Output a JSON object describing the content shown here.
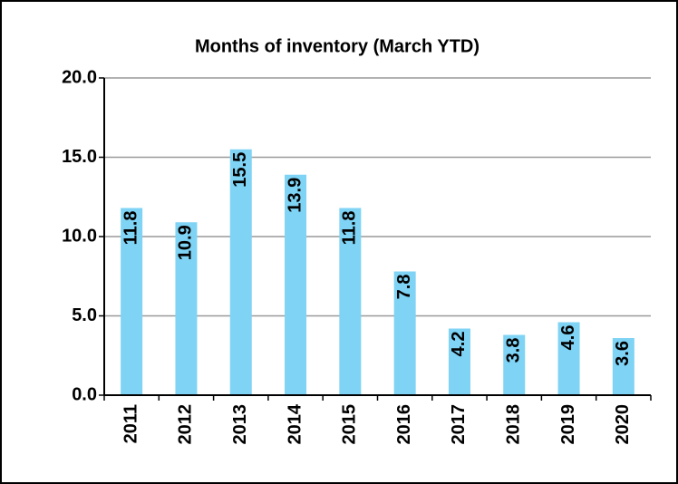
{
  "chart_data": {
    "type": "bar",
    "title": "Months of inventory (March YTD)",
    "categories": [
      "2011",
      "2012",
      "2013",
      "2014",
      "2015",
      "2016",
      "2017",
      "2018",
      "2019",
      "2020"
    ],
    "values": [
      11.8,
      10.9,
      15.5,
      13.9,
      11.8,
      7.8,
      4.2,
      3.8,
      4.6,
      3.6
    ],
    "color": "#7fd3f4",
    "ylim": [
      0,
      20
    ],
    "yticks": [
      {
        "value": 0,
        "label": "0.0"
      },
      {
        "value": 5,
        "label": "5.0"
      },
      {
        "value": 10,
        "label": "10.0"
      },
      {
        "value": 15,
        "label": "15.0"
      },
      {
        "value": 20,
        "label": "20.0"
      }
    ],
    "grid": true
  }
}
